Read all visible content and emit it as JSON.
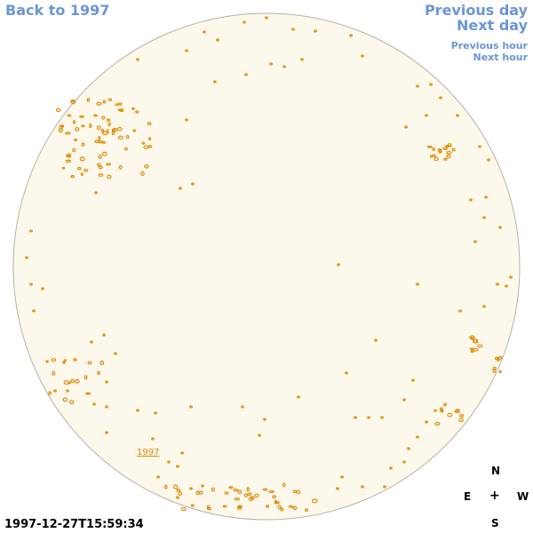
{
  "nav": {
    "back_label": "Back to 1997",
    "prev_day": "Previous day",
    "next_day": "Next day",
    "prev_hour": "Previous hour",
    "next_hour": "Next hour"
  },
  "timestamp": "1997-12-27T15:59:34",
  "disk_label": "1997",
  "compass": {
    "n": "N",
    "e": "E",
    "center": "+",
    "w": "W",
    "s": "S"
  },
  "colors": {
    "disk_fill": "#fdf8ec",
    "disk_edge": "#b8b2a2",
    "region": "#e08a00",
    "link": "#6b95d8"
  }
}
